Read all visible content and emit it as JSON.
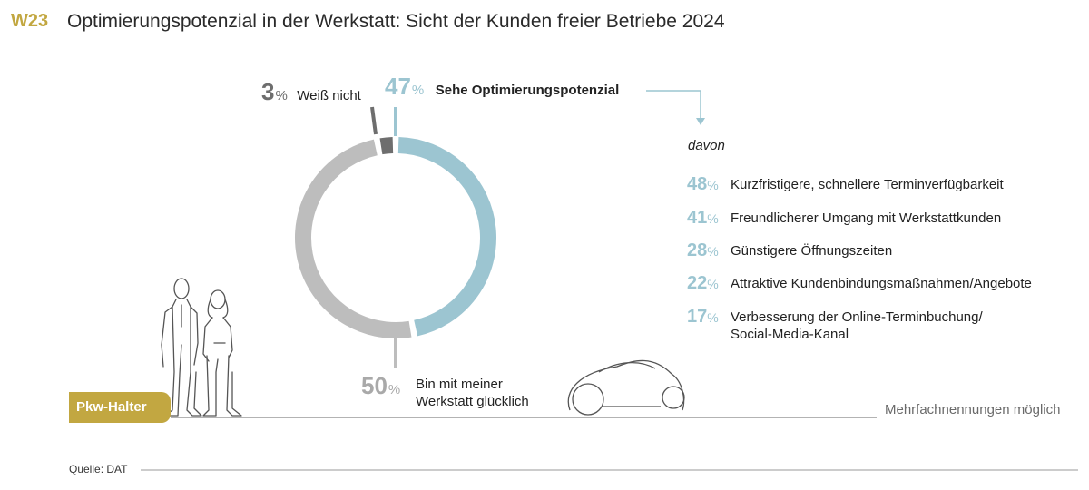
{
  "header": {
    "code": "W23",
    "title": "Optimierungspotenzial in der Werkstatt: Sicht der Kunden freier Betriebe 2024"
  },
  "colors": {
    "accent_gold": "#c2a741",
    "blue": "#9cc5d1",
    "grey": "#bdbdbd",
    "dark_grey": "#6e6e6e"
  },
  "chart_data": [
    {
      "type": "pie",
      "variant": "donut",
      "slices": [
        {
          "label": "Sehe Optimierungspotenzial",
          "value": 47,
          "color": "#9cc5d1"
        },
        {
          "label": "Bin mit meiner Werkstatt glücklich",
          "value": 50,
          "color": "#bdbdbd"
        },
        {
          "label": "Weiß nicht",
          "value": 3,
          "color": "#6e6e6e"
        }
      ],
      "unit": "%"
    },
    {
      "type": "table",
      "intro": "davon",
      "rows": [
        {
          "value": 48,
          "label": "Kurzfristigere, schnellere Terminverfügbarkeit"
        },
        {
          "value": 41,
          "label": "Freundlicherer Umgang mit Werkstattkunden"
        },
        {
          "value": 28,
          "label": "Günstigere Öffnungszeiten"
        },
        {
          "value": 22,
          "label": "Attraktive Kundenbindungsmaßnahmen/Angebote"
        },
        {
          "value": 17,
          "label": "Verbesserung der Online-Terminbuchung/",
          "label2": "Social-Media-Kanal"
        }
      ],
      "unit": "%"
    }
  ],
  "labels": {
    "pct_sign": "%",
    "blue_label": "Sehe Optimierungspotenzial",
    "grey_label_line1": "Bin mit meiner",
    "grey_label_line2": "Werkstatt glücklich",
    "dark_label": "Weiß nicht"
  },
  "badge": "Pkw-Halter",
  "note": "Mehrfachnennungen möglich",
  "source": "Quelle: DAT"
}
